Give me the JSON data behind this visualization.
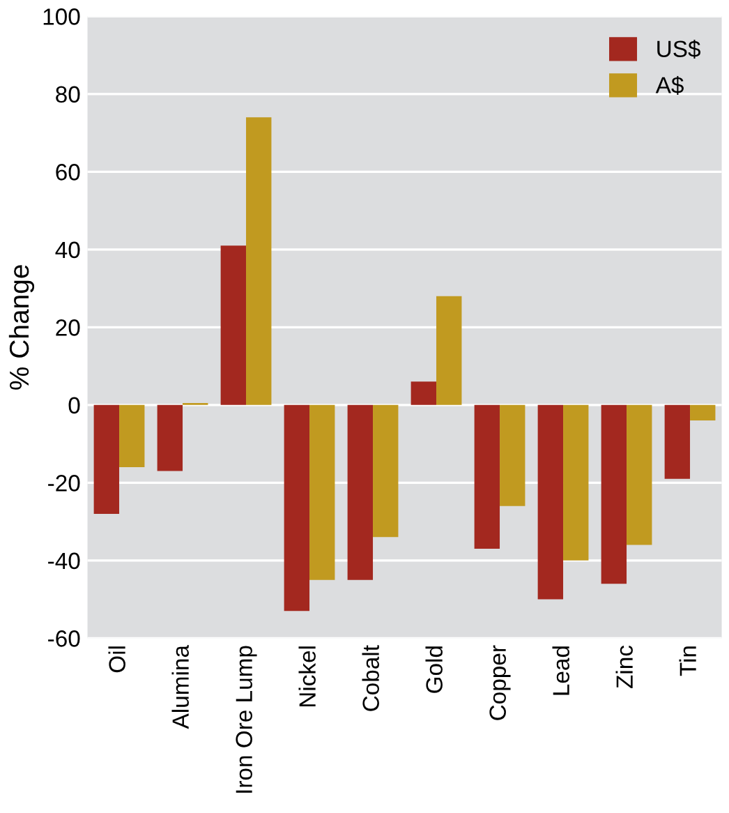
{
  "chart_data": {
    "type": "bar",
    "ylabel": "% Change",
    "categories": [
      "Oil",
      "Alumina",
      "Iron Ore Lump",
      "Nickel",
      "Cobalt",
      "Gold",
      "Copper",
      "Lead",
      "Zinc",
      "Tin"
    ],
    "series": [
      {
        "name": "US$",
        "color": "#a3281f",
        "values": [
          -28,
          -17,
          41,
          -53,
          -45,
          6,
          -37,
          -50,
          -46,
          -19
        ]
      },
      {
        "name": "A$",
        "color": "#c19a20",
        "values": [
          -16,
          0.5,
          74,
          -45,
          -34,
          28,
          -26,
          -40,
          -36,
          -4
        ]
      }
    ],
    "ylim": [
      -60,
      100
    ],
    "yticks": [
      -60,
      -40,
      -20,
      0,
      20,
      40,
      60,
      80,
      100
    ],
    "grid": "y",
    "legend": "top right"
  }
}
